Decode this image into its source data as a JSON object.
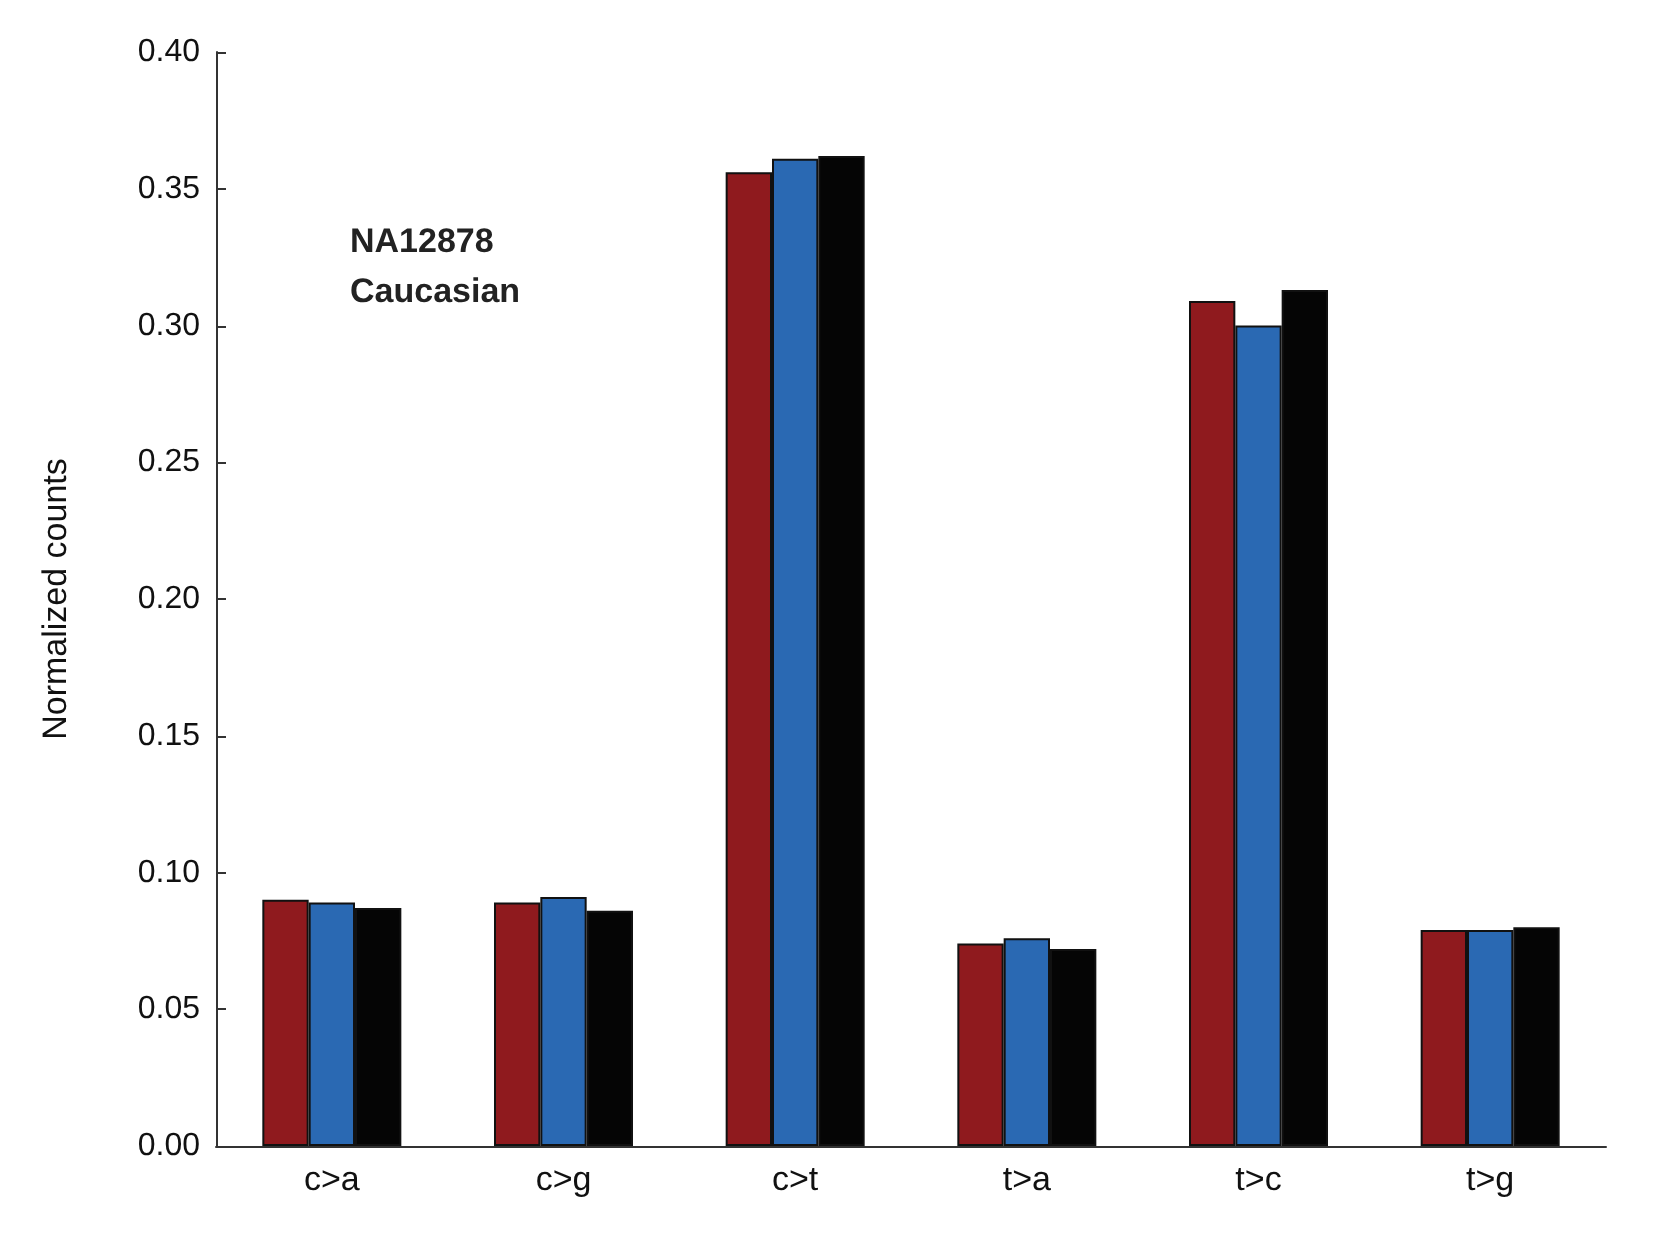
{
  "chart_data": {
    "type": "bar",
    "ylabel": "Normalized counts",
    "annotations": [
      "NA12878\nCaucasian"
    ],
    "categories": [
      "c>a",
      "c>g",
      "c>t",
      "t>a",
      "t>c",
      "t>g"
    ],
    "series": [
      {
        "color": "#8f1a1e",
        "values": [
          0.09,
          0.089,
          0.356,
          0.074,
          0.309,
          0.079
        ]
      },
      {
        "color": "#2a69b3",
        "values": [
          0.089,
          0.091,
          0.361,
          0.076,
          0.3,
          0.079
        ]
      },
      {
        "color": "#050505",
        "values": [
          0.087,
          0.086,
          0.362,
          0.072,
          0.313,
          0.08
        ]
      }
    ],
    "ylim": [
      0,
      0.4
    ],
    "yticks": [
      {
        "value": 0,
        "label": "0.00"
      },
      0.05,
      {
        "value": 0.1,
        "label": "0.10"
      },
      0.15,
      {
        "value": 0.2,
        "label": "0.20"
      },
      0.25,
      {
        "value": 0.3,
        "label": "0.30"
      },
      0.35,
      {
        "value": 0.4,
        "label": "0.40"
      }
    ],
    "grid": false
  }
}
